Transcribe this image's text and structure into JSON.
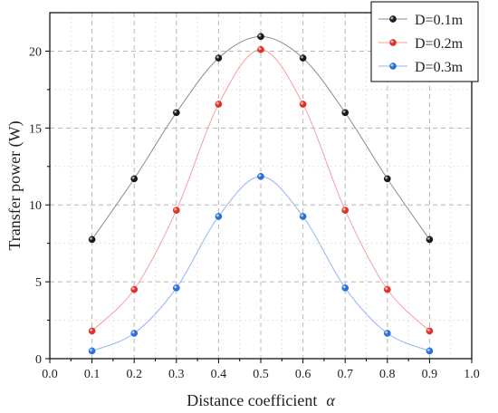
{
  "chart_data": {
    "type": "line",
    "xlabel": "Distance coefficient",
    "xlabel_symbol": "α",
    "ylabel": "Transfer power (W)",
    "xlim": [
      0.0,
      1.0
    ],
    "ylim": [
      0,
      22.5
    ],
    "x_ticks": [
      0.0,
      0.1,
      0.2,
      0.3,
      0.4,
      0.5,
      0.6,
      0.7,
      0.8,
      0.9,
      1.0
    ],
    "x_tick_labels": [
      "0.0",
      "0.1",
      "0.2",
      "0.3",
      "0.4",
      "0.5",
      "0.6",
      "0.7",
      "0.8",
      "0.9",
      "1.0"
    ],
    "y_ticks": [
      0,
      5,
      10,
      15,
      20
    ],
    "y_tick_labels": [
      "0",
      "5",
      "10",
      "15",
      "20"
    ],
    "grid": true,
    "legend_position": "top-right",
    "x": [
      0.1,
      0.2,
      0.3,
      0.4,
      0.5,
      0.6,
      0.7,
      0.8,
      0.9
    ],
    "series": [
      {
        "name": "D=0.1m",
        "color": "#1a1a1a",
        "line_color": "#8c8c8c",
        "values": [
          7.75,
          11.7,
          16.0,
          19.55,
          20.95,
          19.55,
          16.0,
          11.7,
          7.75
        ]
      },
      {
        "name": "D=0.2m",
        "color": "#e0302a",
        "line_color": "#f4a0a0",
        "values": [
          1.8,
          4.5,
          9.65,
          16.55,
          20.1,
          16.55,
          9.65,
          4.5,
          1.8
        ]
      },
      {
        "name": "D=0.3m",
        "color": "#2a6fdb",
        "line_color": "#8fb6ee",
        "values": [
          0.5,
          1.65,
          4.6,
          9.25,
          11.85,
          9.25,
          4.6,
          1.65,
          0.5
        ]
      }
    ]
  }
}
